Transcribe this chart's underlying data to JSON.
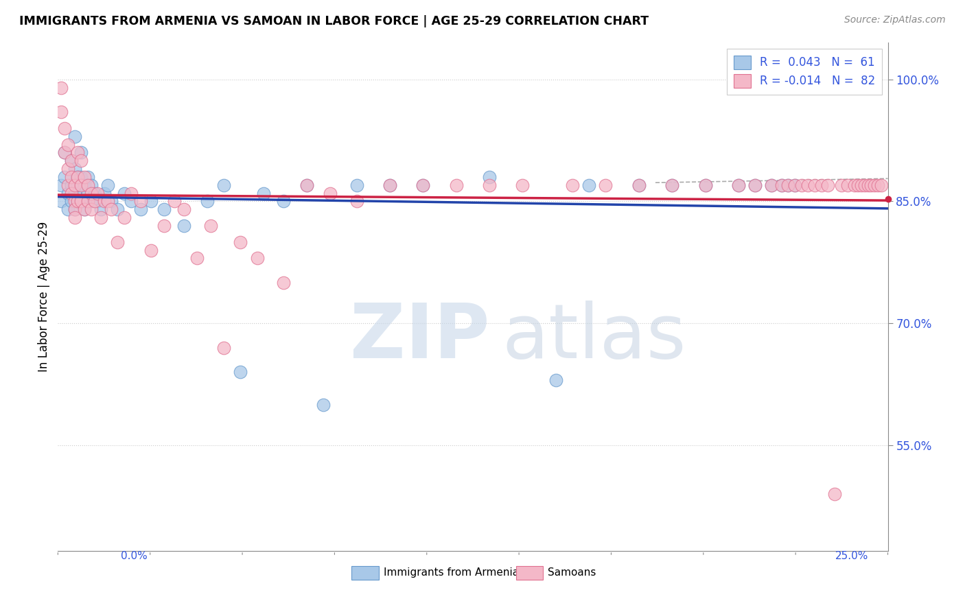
{
  "title": "IMMIGRANTS FROM ARMENIA VS SAMOAN IN LABOR FORCE | AGE 25-29 CORRELATION CHART",
  "source": "Source: ZipAtlas.com",
  "ylabel": "In Labor Force | Age 25-29",
  "ytick_labels": [
    "55.0%",
    "70.0%",
    "85.0%",
    "100.0%"
  ],
  "ytick_values": [
    0.55,
    0.7,
    0.85,
    1.0
  ],
  "xmin": 0.0,
  "xmax": 0.25,
  "ymin": 0.42,
  "ymax": 1.045,
  "armenia_color": "#a8c8e8",
  "armenia_edge": "#6699cc",
  "samoan_color": "#f4b8c8",
  "samoan_edge": "#e07090",
  "armenia_R": 0.043,
  "armenia_N": 61,
  "samoan_R": -0.014,
  "samoan_N": 82,
  "trend_armenia_color": "#2244aa",
  "trend_samoan_color": "#cc2244",
  "legend_label_armenia": "Immigrants from Armenia",
  "legend_label_samoan": "Samoans",
  "armenia_x": [
    0.001,
    0.001,
    0.002,
    0.002,
    0.003,
    0.003,
    0.004,
    0.004,
    0.004,
    0.005,
    0.005,
    0.005,
    0.005,
    0.006,
    0.006,
    0.006,
    0.007,
    0.007,
    0.007,
    0.008,
    0.008,
    0.008,
    0.009,
    0.009,
    0.01,
    0.01,
    0.011,
    0.012,
    0.013,
    0.014,
    0.015,
    0.016,
    0.018,
    0.02,
    0.022,
    0.025,
    0.028,
    0.032,
    0.038,
    0.045,
    0.05,
    0.055,
    0.062,
    0.068,
    0.075,
    0.08,
    0.09,
    0.1,
    0.11,
    0.13,
    0.15,
    0.16,
    0.175,
    0.185,
    0.195,
    0.205,
    0.21,
    0.215,
    0.218,
    0.22,
    0.222
  ],
  "armenia_y": [
    0.87,
    0.85,
    0.91,
    0.88,
    0.86,
    0.84,
    0.9,
    0.87,
    0.85,
    0.93,
    0.89,
    0.86,
    0.84,
    0.88,
    0.87,
    0.85,
    0.91,
    0.88,
    0.85,
    0.87,
    0.85,
    0.84,
    0.88,
    0.86,
    0.87,
    0.85,
    0.86,
    0.85,
    0.84,
    0.86,
    0.87,
    0.85,
    0.84,
    0.86,
    0.85,
    0.84,
    0.85,
    0.84,
    0.82,
    0.85,
    0.87,
    0.64,
    0.86,
    0.85,
    0.87,
    0.6,
    0.87,
    0.87,
    0.87,
    0.88,
    0.63,
    0.87,
    0.87,
    0.87,
    0.87,
    0.87,
    0.87,
    0.87,
    0.87,
    0.87,
    0.87
  ],
  "samoan_x": [
    0.001,
    0.001,
    0.002,
    0.002,
    0.003,
    0.003,
    0.003,
    0.004,
    0.004,
    0.004,
    0.005,
    0.005,
    0.005,
    0.005,
    0.006,
    0.006,
    0.006,
    0.007,
    0.007,
    0.007,
    0.008,
    0.008,
    0.009,
    0.009,
    0.01,
    0.01,
    0.011,
    0.012,
    0.013,
    0.014,
    0.015,
    0.016,
    0.018,
    0.02,
    0.022,
    0.025,
    0.028,
    0.032,
    0.035,
    0.038,
    0.042,
    0.046,
    0.05,
    0.055,
    0.06,
    0.068,
    0.075,
    0.082,
    0.09,
    0.1,
    0.11,
    0.12,
    0.13,
    0.14,
    0.155,
    0.165,
    0.175,
    0.185,
    0.195,
    0.205,
    0.21,
    0.215,
    0.218,
    0.22,
    0.222,
    0.224,
    0.226,
    0.228,
    0.23,
    0.232,
    0.234,
    0.236,
    0.238,
    0.24,
    0.241,
    0.242,
    0.243,
    0.244,
    0.245,
    0.246,
    0.247,
    0.248
  ],
  "samoan_y": [
    0.99,
    0.96,
    0.94,
    0.91,
    0.89,
    0.87,
    0.92,
    0.88,
    0.86,
    0.9,
    0.87,
    0.85,
    0.84,
    0.83,
    0.91,
    0.88,
    0.85,
    0.9,
    0.87,
    0.85,
    0.88,
    0.84,
    0.87,
    0.85,
    0.86,
    0.84,
    0.85,
    0.86,
    0.83,
    0.85,
    0.85,
    0.84,
    0.8,
    0.83,
    0.86,
    0.85,
    0.79,
    0.82,
    0.85,
    0.84,
    0.78,
    0.82,
    0.67,
    0.8,
    0.78,
    0.75,
    0.87,
    0.86,
    0.85,
    0.87,
    0.87,
    0.87,
    0.87,
    0.87,
    0.87,
    0.87,
    0.87,
    0.87,
    0.87,
    0.87,
    0.87,
    0.87,
    0.87,
    0.87,
    0.87,
    0.87,
    0.87,
    0.87,
    0.87,
    0.87,
    0.49,
    0.87,
    0.87,
    0.87,
    0.87,
    0.87,
    0.87,
    0.87,
    0.87,
    0.87,
    0.87,
    0.87
  ]
}
